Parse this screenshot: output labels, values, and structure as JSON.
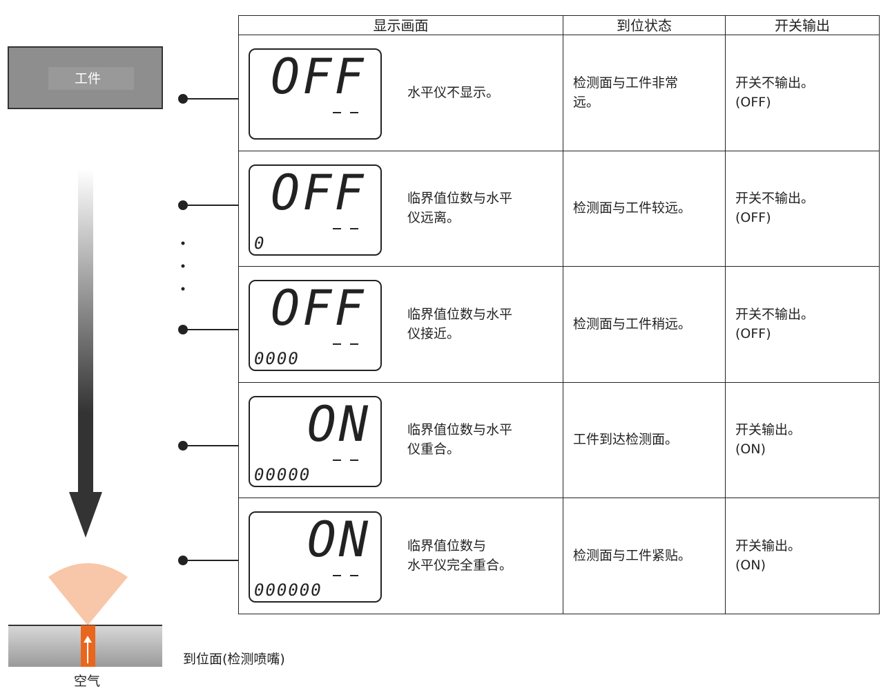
{
  "workpiece": "工件",
  "table": {
    "headers": [
      "显示画面",
      "到位状态",
      "开关输出"
    ],
    "rows": [
      {
        "display": {
          "main": "OFF"
        },
        "description": [
          "水平仪不显示。"
        ],
        "state": [
          "检测面与工件非常",
          "远。"
        ],
        "output": [
          "开关不输出。",
          "(OFF)"
        ]
      },
      {
        "display": {
          "main": "OFF",
          "level": "0"
        },
        "description": [
          "临界值位数与水平",
          "仪远离。"
        ],
        "state": [
          "检测面与工件较远。"
        ],
        "output": [
          "开关不输出。",
          "(OFF)"
        ]
      },
      {
        "display": {
          "main": "OFF",
          "level": "0000"
        },
        "description": [
          "临界值位数与水平",
          "仪接近。"
        ],
        "state": [
          "检测面与工件稍远。"
        ],
        "output": [
          "开关不输出。",
          "(OFF)"
        ]
      },
      {
        "display": {
          "main": "ON",
          "level": "00000"
        },
        "description": [
          "临界值位数与水平",
          "仪重合。"
        ],
        "state": [
          "工件到达检测面。"
        ],
        "output": [
          "开关输出。",
          "(ON)"
        ]
      },
      {
        "display": {
          "main": "ON",
          "level": "000000"
        },
        "description": [
          "临界值位数与",
          "水平仪完全重合。"
        ],
        "state": [
          "检测面与工件紧贴。"
        ],
        "output": [
          "开关输出。",
          "(ON)"
        ]
      }
    ]
  },
  "surface_label": "到位面(检测喷嘴)",
  "air_label": "空气"
}
